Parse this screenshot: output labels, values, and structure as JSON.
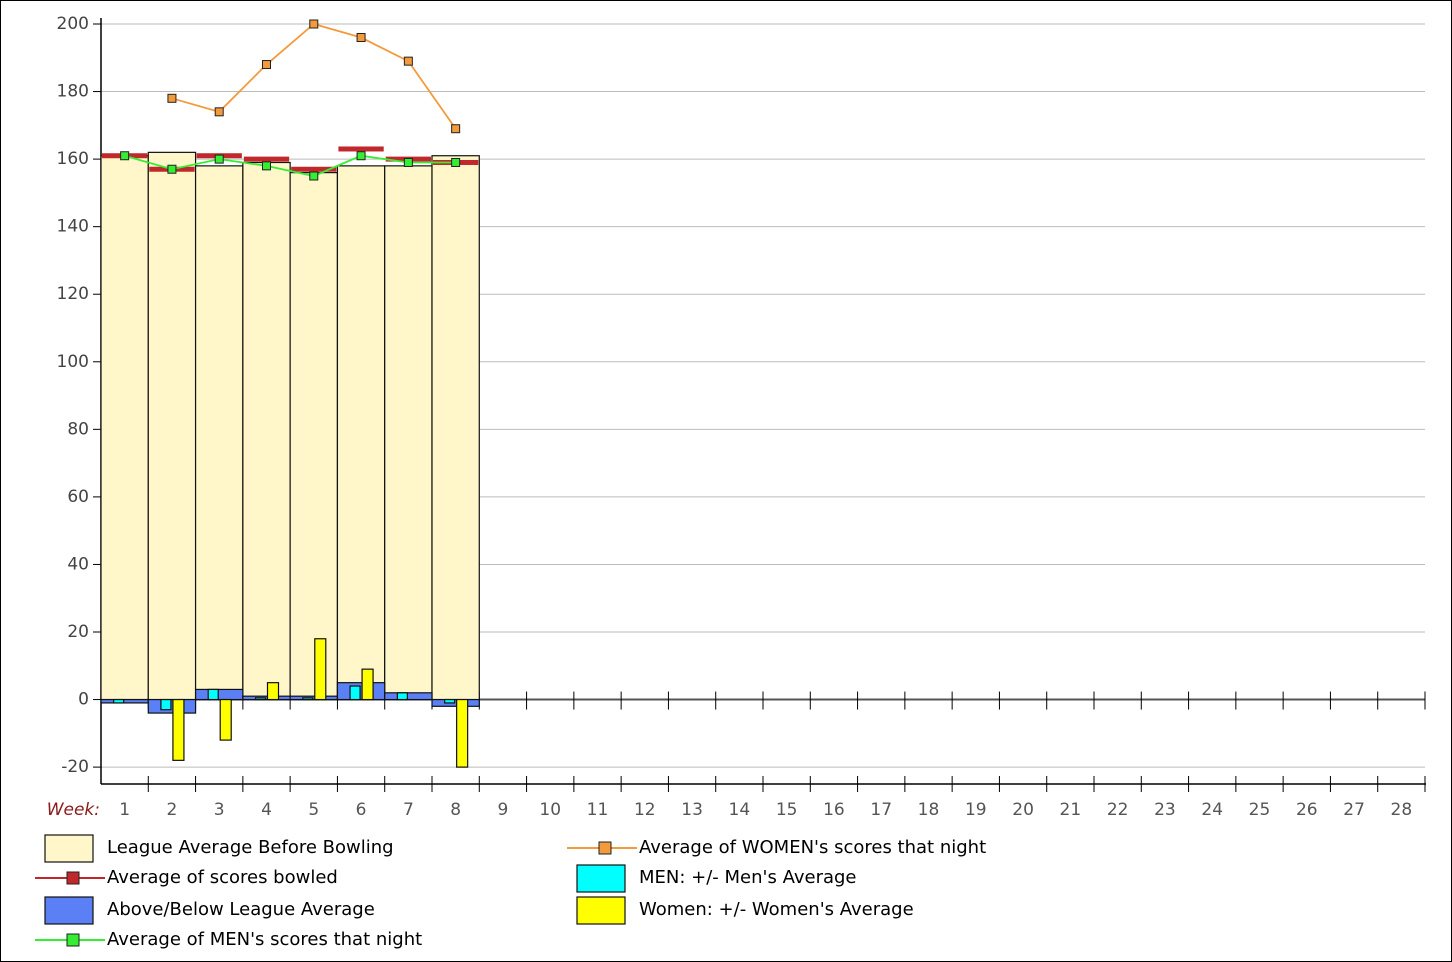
{
  "chart_data": {
    "type": "combo",
    "x_label": "Week:",
    "categories": [
      1,
      2,
      3,
      4,
      5,
      6,
      7,
      8,
      9,
      10,
      11,
      12,
      13,
      14,
      15,
      16,
      17,
      18,
      19,
      20,
      21,
      22,
      23,
      24,
      25,
      26,
      27,
      28
    ],
    "ylim": [
      -25,
      200
    ],
    "yticks": [
      -20,
      0,
      20,
      40,
      60,
      80,
      100,
      120,
      140,
      160,
      180,
      200
    ],
    "grid": true,
    "series": [
      {
        "name": "League Average Before Bowling",
        "type": "bar",
        "color": "#fff7c9",
        "values": [
          161,
          162,
          158,
          159,
          156,
          158,
          158,
          161,
          null,
          null,
          null,
          null,
          null,
          null,
          null,
          null,
          null,
          null,
          null,
          null,
          null,
          null,
          null,
          null,
          null,
          null,
          null,
          null
        ]
      },
      {
        "name": "Average of scores bowled",
        "type": "dash",
        "color": "#c0282c",
        "values": [
          161,
          157,
          161,
          160,
          157,
          163,
          160,
          159,
          null,
          null,
          null,
          null,
          null,
          null,
          null,
          null,
          null,
          null,
          null,
          null,
          null,
          null,
          null,
          null,
          null,
          null,
          null,
          null
        ]
      },
      {
        "name": "Above/Below League Average",
        "type": "bar",
        "color": "#5b7ff5",
        "values": [
          -1,
          -4,
          3,
          1,
          1,
          5,
          2,
          -2,
          null,
          null,
          null,
          null,
          null,
          null,
          null,
          null,
          null,
          null,
          null,
          null,
          null,
          null,
          null,
          null,
          null,
          null,
          null,
          null
        ]
      },
      {
        "name": "Average of MEN's scores that night",
        "type": "line",
        "color": "#33ee33",
        "values": [
          161,
          157,
          160,
          158,
          155,
          161,
          159,
          159,
          null,
          null,
          null,
          null,
          null,
          null,
          null,
          null,
          null,
          null,
          null,
          null,
          null,
          null,
          null,
          null,
          null,
          null,
          null,
          null
        ]
      },
      {
        "name": "Average of WOMEN's scores that night",
        "type": "line",
        "color": "#f39a3c",
        "values": [
          null,
          178,
          174,
          188,
          200,
          196,
          189,
          169,
          null,
          null,
          null,
          null,
          null,
          null,
          null,
          null,
          null,
          null,
          null,
          null,
          null,
          null,
          null,
          null,
          null,
          null,
          null,
          null
        ]
      },
      {
        "name": "MEN: +/- Men's Average",
        "type": "narrow-left",
        "color": "#00ffff",
        "values": [
          -1,
          -3,
          3,
          0.5,
          0.5,
          4,
          2,
          -1,
          null,
          null,
          null,
          null,
          null,
          null,
          null,
          null,
          null,
          null,
          null,
          null,
          null,
          null,
          null,
          null,
          null,
          null,
          null,
          null
        ]
      },
      {
        "name": "Women: +/- Women's Average",
        "type": "narrow-right",
        "color": "#ffff00",
        "values": [
          null,
          -18,
          -12,
          5,
          18,
          9,
          null,
          -20,
          null,
          null,
          null,
          null,
          null,
          null,
          null,
          null,
          null,
          null,
          null,
          null,
          null,
          null,
          null,
          null,
          null,
          null,
          null,
          null
        ]
      }
    ]
  }
}
